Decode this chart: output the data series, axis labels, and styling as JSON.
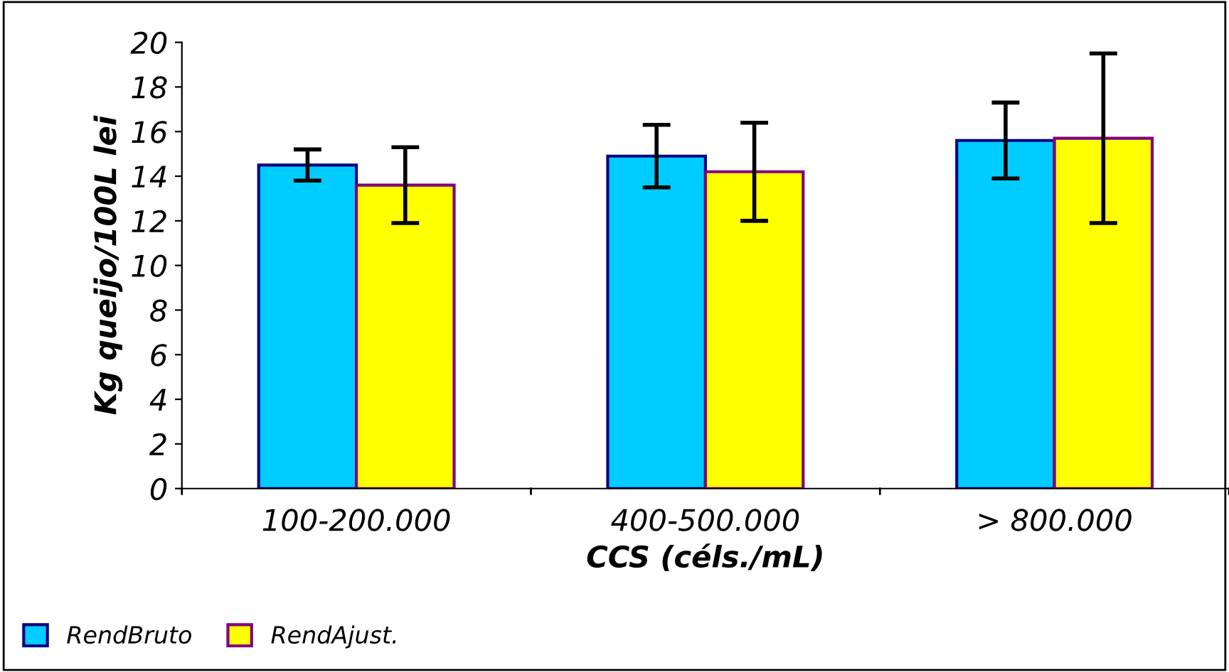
{
  "chart_data": {
    "type": "bar",
    "xlabel": "CCS (céls./mL)",
    "ylabel": "Kg queijo/100L lei",
    "categories": [
      "100-200.000",
      "400-500.000",
      "> 800.000"
    ],
    "series": [
      {
        "name": "RendBruto",
        "color": "#00ccff",
        "values": [
          14.5,
          14.9,
          15.6
        ],
        "errors": [
          0.7,
          1.4,
          1.7
        ]
      },
      {
        "name": "RendAjust.",
        "color": "#ffff00",
        "values": [
          13.6,
          14.2,
          15.7
        ],
        "errors": [
          1.7,
          2.2,
          3.8
        ]
      }
    ],
    "ylim": [
      0,
      20
    ],
    "yticks": [
      0,
      2,
      4,
      6,
      8,
      10,
      12,
      14,
      16,
      18,
      20
    ],
    "grid": false,
    "legend": "bottom left"
  }
}
